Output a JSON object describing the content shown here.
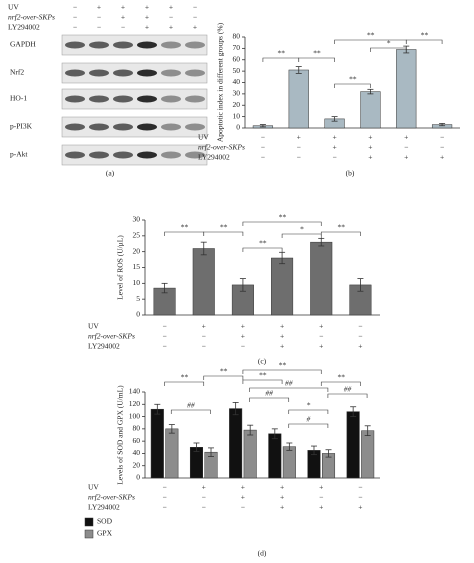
{
  "blot": {
    "label": "(a)",
    "treatments": [
      {
        "label": "UV",
        "signs": [
          "−",
          "+",
          "+",
          "+",
          "+",
          "−"
        ]
      },
      {
        "label": "nrf2-over-SKPs",
        "signs": [
          "−",
          "−",
          "+",
          "+",
          "−",
          "−"
        ]
      },
      {
        "label": "LY294002",
        "signs": [
          "−",
          "−",
          "−",
          "+",
          "+",
          "+"
        ]
      }
    ],
    "proteins": [
      "GAPDH",
      "Nrf2",
      "HO-1",
      "p-PI3K",
      "p-Akt"
    ]
  },
  "chart_data": [
    {
      "type": "bar",
      "label": "(b)",
      "ylabel": "Apoptotic index in different groups (%)",
      "values": [
        2,
        51,
        8,
        32,
        69,
        3
      ],
      "errors": [
        1,
        3,
        2,
        2,
        3,
        1
      ],
      "color": "#a9b9c2",
      "ylim": [
        0,
        80
      ],
      "yticks": [
        0,
        10,
        20,
        30,
        40,
        50,
        60,
        70,
        80
      ],
      "treatments": [
        {
          "label": "UV",
          "signs": [
            "−",
            "+",
            "+",
            "+",
            "+",
            "−"
          ]
        },
        {
          "label": "nrf2-over-SKPs",
          "signs": [
            "−",
            "−",
            "+",
            "+",
            "−",
            "−"
          ]
        },
        {
          "label": "LY294002",
          "signs": [
            "−",
            "−",
            "−",
            "+",
            "+",
            "+"
          ]
        }
      ],
      "annotations": [
        "**",
        "**",
        "**",
        "*",
        "**",
        "**"
      ]
    },
    {
      "type": "bar",
      "label": "(c)",
      "ylabel": "Level of ROS (U/μL)",
      "values": [
        8.5,
        21,
        9.5,
        18,
        23,
        9.5
      ],
      "errors": [
        1.5,
        2,
        2,
        1.8,
        1.2,
        2
      ],
      "color": "#6e6e6e",
      "ylim": [
        0,
        30
      ],
      "yticks": [
        0,
        5,
        10,
        15,
        20,
        25,
        30
      ],
      "treatments": [
        {
          "label": "UV",
          "signs": [
            "−",
            "+",
            "+",
            "+",
            "+",
            "−"
          ]
        },
        {
          "label": "nrf2-over-SKPs",
          "signs": [
            "−",
            "−",
            "+",
            "+",
            "−",
            "−"
          ]
        },
        {
          "label": "LY294002",
          "signs": [
            "−",
            "−",
            "−",
            "+",
            "+",
            "+"
          ]
        }
      ],
      "annotations": [
        "**",
        "**",
        "**",
        "*",
        "**",
        "**"
      ]
    },
    {
      "type": "grouped-bar",
      "label": "(d)",
      "ylabel": "Levels of SOD and GPX (U/mL)",
      "series": [
        {
          "name": "SOD",
          "color": "#111111",
          "values": [
            112,
            50,
            113,
            72,
            45,
            108
          ],
          "errors": [
            8,
            7,
            10,
            8,
            7,
            8
          ]
        },
        {
          "name": "GPX",
          "color": "#8c8c8c",
          "values": [
            80,
            42,
            78,
            51,
            40,
            77
          ],
          "errors": [
            7,
            7,
            8,
            6,
            6,
            8
          ]
        }
      ],
      "ylim": [
        0,
        140
      ],
      "yticks": [
        0,
        20,
        40,
        60,
        80,
        100,
        120,
        140
      ],
      "treatments": [
        {
          "label": "UV",
          "signs": [
            "−",
            "+",
            "+",
            "+",
            "+",
            "−"
          ]
        },
        {
          "label": "nrf2-over-SKPs",
          "signs": [
            "−",
            "−",
            "+",
            "+",
            "−",
            "−"
          ]
        },
        {
          "label": "LY294002",
          "signs": [
            "−",
            "−",
            "−",
            "+",
            "+",
            "+"
          ]
        }
      ],
      "annotations": [
        "**",
        "**",
        "**",
        "**",
        "**",
        "##",
        "##",
        "##",
        "##",
        "*",
        "#"
      ]
    }
  ]
}
